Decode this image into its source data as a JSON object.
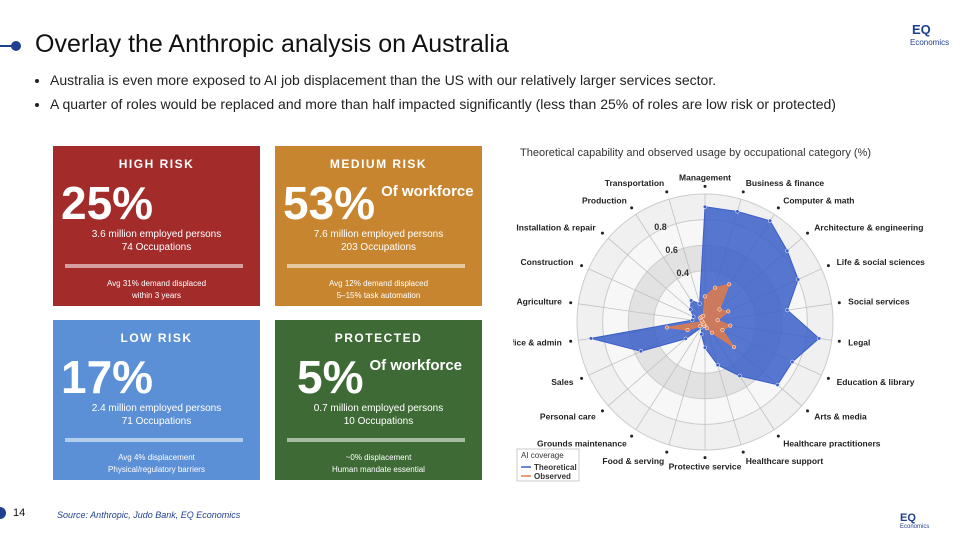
{
  "header": {
    "title": "Overlay the Anthropic analysis on Australia",
    "bullets": [
      "Australia is even more exposed to AI job displacement than the US with our relatively larger services sector.",
      "A quarter of roles would be replaced and more than half impacted significantly (less than 25% of roles are low risk or protected)"
    ]
  },
  "cards": [
    {
      "label": "HIGH RISK",
      "figure": "25%",
      "color": "#a32c2b",
      "details": [
        "3.6 million employed persons",
        "74 Occupations"
      ],
      "notes": [
        "Avg 31% demand displaced",
        "within 3 years"
      ]
    },
    {
      "label": "MEDIUM RISK",
      "figure": "53%",
      "figure_note": "Of workforce",
      "color": "#c8852f",
      "details": [
        "7.6 million employed persons",
        "203 Occupations"
      ],
      "notes": [
        "Avg 12% demand displaced",
        "5–15% task automation"
      ]
    },
    {
      "label": "LOW RISK",
      "figure": "17%",
      "color": "#5b8fd6",
      "details": [
        "2.4 million employed persons",
        "71 Occupations"
      ],
      "notes": [
        "Avg 4% displacement",
        "Physical/regulatory barriers"
      ]
    },
    {
      "label": "PROTECTED",
      "figure": "5%",
      "figure_note": "Of workforce",
      "color": "#3e6b35",
      "details": [
        "0.7 million employed persons",
        "10 Occupations"
      ],
      "notes": [
        "~0% displacement",
        "Human mandate essential"
      ]
    }
  ],
  "chart_data": {
    "type": "radar",
    "title": "Theoretical capability and observed usage by occupational category (%)",
    "categories": [
      "Management",
      "Business & finance",
      "Computer & math",
      "Architecture & engineering",
      "Life & social sciences",
      "Social services",
      "Legal",
      "Education & library",
      "Arts & media",
      "Healthcare practitioners",
      "Healthcare support",
      "Protective service",
      "Food & serving",
      "Grounds maintenance",
      "Personal care",
      "Sales",
      "Office & admin",
      "Agriculture",
      "Construction",
      "Installation & repair",
      "Production",
      "Transportation"
    ],
    "series": [
      {
        "name": "Theoretical",
        "color": "#3a5fc8",
        "values": [
          0.9,
          0.9,
          0.94,
          0.85,
          0.8,
          0.65,
          0.9,
          0.75,
          0.75,
          0.5,
          0.35,
          0.2,
          0.1,
          0.05,
          0.2,
          0.55,
          0.9,
          0.1,
          0.1,
          0.15,
          0.2,
          0.15
        ]
      },
      {
        "name": "Observed",
        "color": "#e07b4a",
        "values": [
          0.2,
          0.28,
          0.35,
          0.15,
          0.2,
          0.1,
          0.2,
          0.15,
          0.3,
          0.1,
          0.05,
          0.03,
          0.03,
          0.02,
          0.05,
          0.15,
          0.3,
          0.02,
          0.03,
          0.05,
          0.05,
          0.05
        ]
      }
    ],
    "legend_title": "AI coverage",
    "rlim": [
      0,
      1
    ],
    "rticks": [
      0.4,
      0.6,
      0.8
    ]
  },
  "footer": {
    "page": "14",
    "source": "Source: Anthropic, Judo Bank, EQ Economics"
  },
  "logo": {
    "mark": "EQ",
    "name": "Economics"
  }
}
